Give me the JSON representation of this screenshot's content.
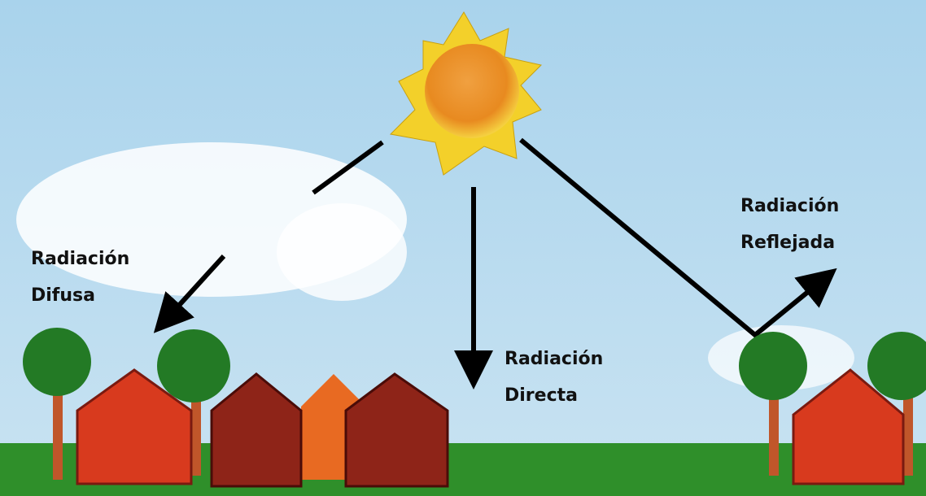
{
  "labels": {
    "difusa": [
      "Radiación",
      "Difusa"
    ],
    "directa": [
      "Radiación",
      "Directa"
    ],
    "reflejada": [
      "Radiación",
      "Reflejada"
    ]
  }
}
